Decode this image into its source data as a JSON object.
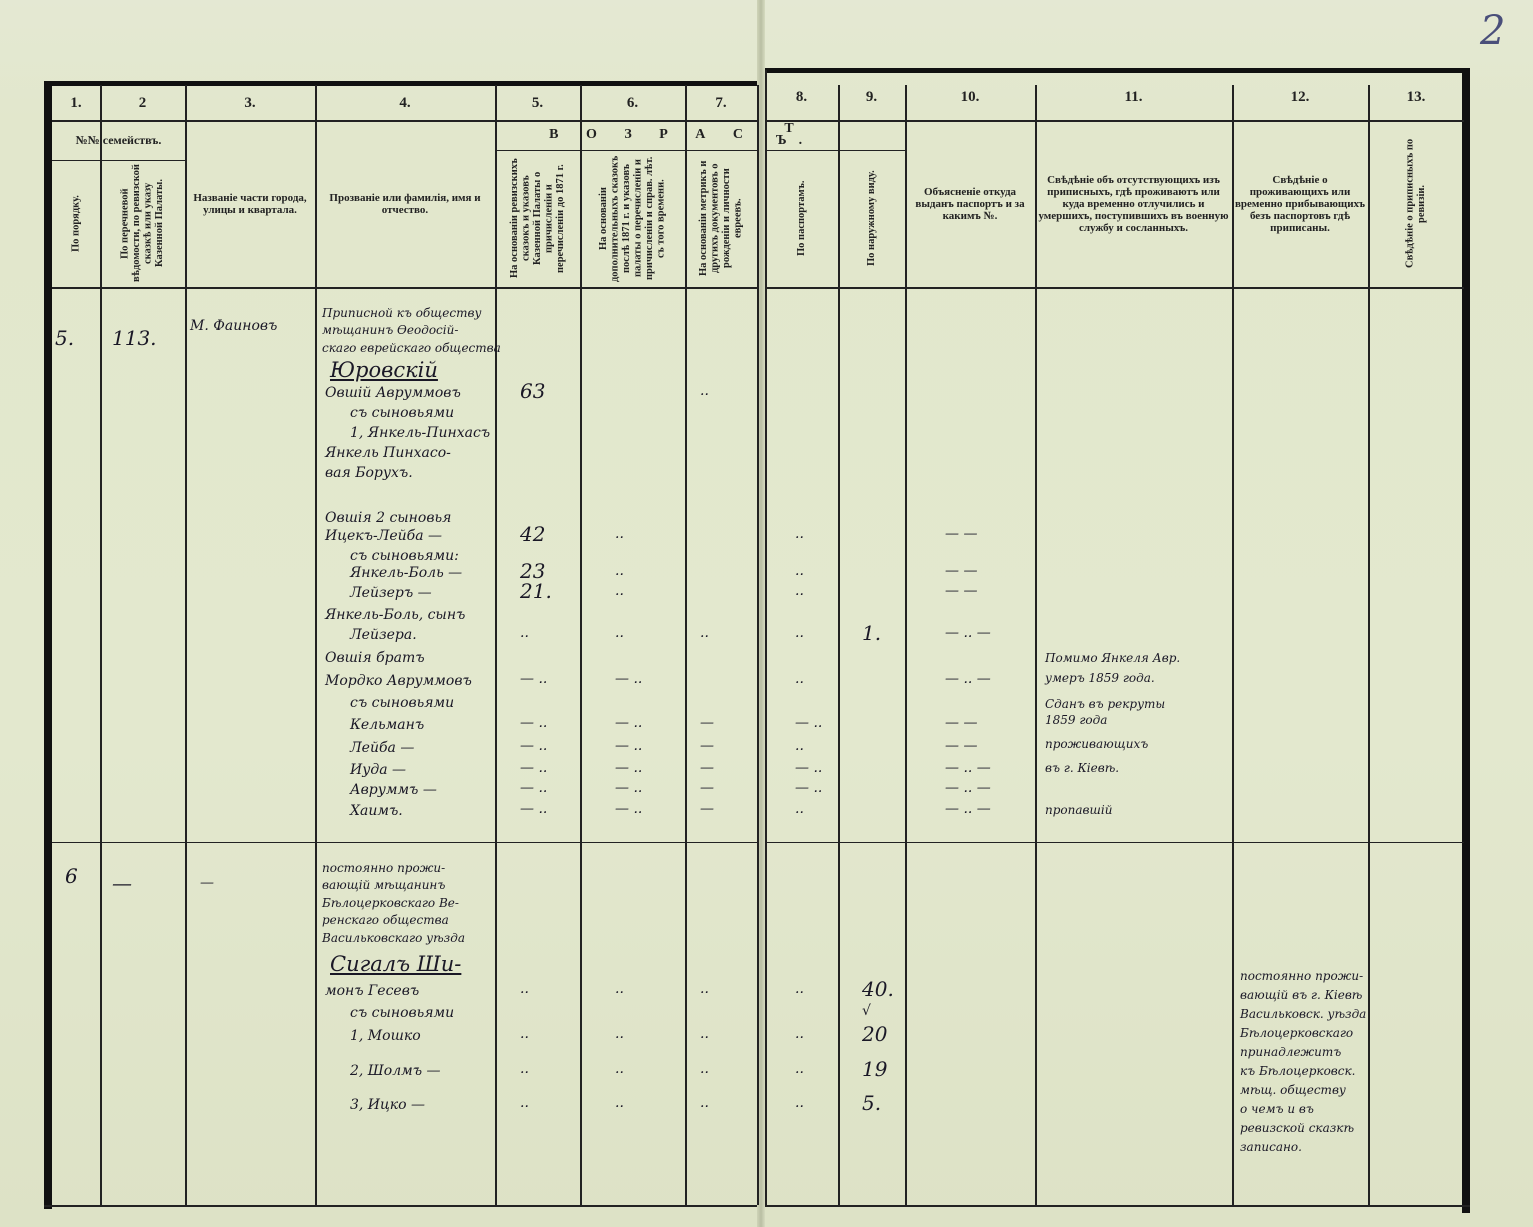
{
  "page_number": "2",
  "header": {
    "col_numbers": [
      "1.",
      "2",
      "3.",
      "4.",
      "5.",
      "6.",
      "7.",
      "8.",
      "9.",
      "10.",
      "11.",
      "12.",
      "13."
    ],
    "families_label": "№№ семействъ.",
    "age_group_left": "В О З Р А С",
    "age_group_right": "Т Ъ.",
    "col1": "По порядку.",
    "col2": "По перечневой вѣдомости, по ревизской сказкѣ или указу Казенной Палаты.",
    "col3": "Названіе части города, улицы и квартала.",
    "col4": "Прозваніе или фамилія, имя и отчество.",
    "col5": "На основаніи ревизскихъ сказокъ и указовъ Казенной Палаты о причисленіи и перечисленіи до 1871 г.",
    "col6": "На основаніи дополнительныхъ сказокъ послѣ 1871 г. и указовъ палаты о перечисленіи и причисленіи и справ. лѣт. съ того времени.",
    "col7": "На основаніи метрикъ и другихъ документовъ о рожденіи и личности евреевъ.",
    "col8": "По паспортамъ.",
    "col9": "По наружному виду.",
    "col10": "Объясненіе откуда выданъ паспортъ и за какимъ №.",
    "col11": "Свѣдѣніе объ отсутствующихъ изъ приписныхъ, гдѣ проживаютъ или куда временно отлучились и умершихъ, поступившихъ въ военную службу и сосланныхъ.",
    "col12": "Свѣдѣніе о проживающихъ или временно прибывающихъ безъ паспортовъ гдѣ приписаны.",
    "col13": "Свѣдѣніе о приписныхъ по ревизіи."
  },
  "families": [
    {
      "order_no": "5.",
      "list_no": "113.",
      "street": "М. Фаиновъ",
      "intro": [
        "Приписной къ обществу",
        "мѣщанинъ Ѳеодосій-",
        "скаго еврейскаго общества"
      ],
      "surname": "Юровскій",
      "members": [
        {
          "name": "Овшій Авруммовъ",
          "c5": "63",
          "c7": ".."
        },
        {
          "name": "съ сыновьями"
        },
        {
          "name": "1, Янкель-Пинхасъ"
        },
        {
          "name": "Янкель Пинхасо-"
        },
        {
          "name": "вая Борухъ."
        },
        {
          "name": "Овшія 2 сыновья"
        },
        {
          "name": "Ицекъ-Лейба —",
          "c5": "42",
          "c6": "..",
          "c8": "..",
          "c10": "— —"
        },
        {
          "name": "съ сыновьями:"
        },
        {
          "name": "Янкель-Боль —",
          "c5": "23",
          "c6": "..",
          "c8": "..",
          "c10": "— —"
        },
        {
          "name": "Лейзеръ —",
          "c5": "21.",
          "c6": "..",
          "c8": "..",
          "c10": "— —"
        },
        {
          "name": "Янкель-Боль, сынъ"
        },
        {
          "name": "Лейзера.",
          "c5": "..",
          "c6": "..",
          "c7": "..",
          "c8": "..",
          "c9": "1.",
          "c10": "— ..  —"
        },
        {
          "name": "Овшія братъ"
        },
        {
          "name": "Мордко Авруммовъ",
          "c5": "— ..",
          "c6": "— ..",
          "c8": "..",
          "c10": "— ..  —"
        },
        {
          "name": "съ сыновьями"
        },
        {
          "name": "Кельманъ",
          "c5": "— ..",
          "c6": "— ..",
          "c7": "—",
          "c8": "— ..",
          "c10": "— —"
        },
        {
          "name": "Лейба —",
          "c5": "— ..",
          "c6": "— ..",
          "c7": "—",
          "c8": "..",
          "c10": "— —"
        },
        {
          "name": "Иуда —",
          "c5": "— ..",
          "c6": "— ..",
          "c7": "—",
          "c8": "— ..",
          "c10": "— ..  —"
        },
        {
          "name": "Авруммъ —",
          "c5": "— ..",
          "c6": "— ..",
          "c7": "—",
          "c8": "— ..",
          "c10": "— ..  —"
        },
        {
          "name": "Хаимъ.",
          "c5": "— ..",
          "c6": "— ..",
          "c7": "—",
          "c8": "..",
          "c10": "— ..  —"
        }
      ],
      "notes_col11": [
        "Помимо Янкеля Авр.",
        "умеръ 1859 года.",
        "Сданъ въ рекруты",
        "1859 года",
        "проживающихъ",
        "въ г. Кіевѣ.",
        "пропавшій"
      ]
    },
    {
      "order_no": "6",
      "list_no": "—",
      "street": "—",
      "intro": [
        "постоянно прожи-",
        "вающій мѣщанинъ",
        "Бѣлоцерковскаго Ве-",
        "ренскаго общества",
        "Васильковскаго уѣзда"
      ],
      "surname": "Сигалъ Ши-",
      "members": [
        {
          "name": "монъ Гесевъ",
          "c5": "..",
          "c6": "..",
          "c7": "..",
          "c8": "..",
          "c9": "40."
        },
        {
          "name": "съ сыновьями",
          "c9": "√"
        },
        {
          "name": "1, Мошко",
          "c5": "..",
          "c6": "..",
          "c7": "..",
          "c8": "..",
          "c9": "20"
        },
        {
          "name": "2, Шолмъ —",
          "c5": "..",
          "c6": "..",
          "c7": "..",
          "c8": "..",
          "c9": "19"
        },
        {
          "name": "3, Ицко —",
          "c5": "..",
          "c6": "..",
          "c7": "..",
          "c8": "..",
          "c9": "5."
        }
      ],
      "notes_col12": [
        "постоянно прожи-",
        "вающій въ г. Кіевѣ",
        "Васильковск. уѣзда",
        "Бѣлоцерковскаго",
        "принадлежитъ",
        "къ Бѣлоцерковск.",
        "мѣщ. обществу",
        "о чемъ и въ",
        "ревизской сказкѣ",
        "записано."
      ]
    }
  ]
}
